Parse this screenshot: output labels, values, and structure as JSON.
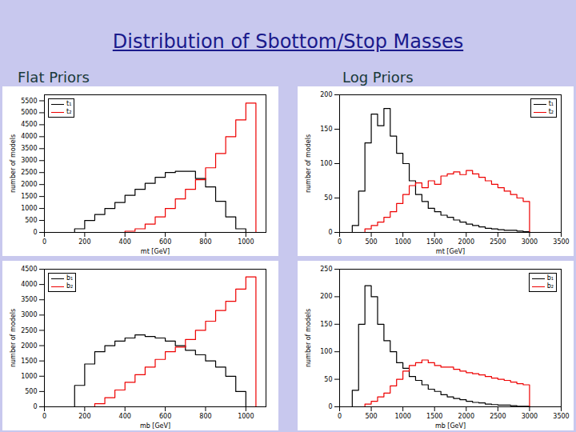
{
  "title": "Distribution of Sbottom/Stop Masses",
  "columns": [
    "Flat Priors",
    "Log Priors"
  ],
  "chart_data": [
    {
      "type": "histogram",
      "x_label": "mt [GeV]",
      "y_label": "number of models",
      "xlim": [
        0,
        1100
      ],
      "xticks": [
        0,
        200,
        400,
        600,
        800,
        1000
      ],
      "ylim": [
        0,
        5750
      ],
      "yticks": [
        0,
        500,
        1000,
        1500,
        2000,
        2500,
        3000,
        3500,
        4000,
        4500,
        5000,
        5500
      ],
      "legend": "top-left",
      "series": [
        {
          "name": "t₁",
          "color": "#000000",
          "bins": [
            150,
            200,
            250,
            300,
            350,
            400,
            450,
            500,
            550,
            600,
            650,
            700,
            750,
            800,
            850,
            900,
            950,
            1000
          ],
          "values": [
            150,
            500,
            750,
            1000,
            1250,
            1550,
            1800,
            2050,
            2300,
            2500,
            2550,
            2550,
            2250,
            1900,
            1300,
            650,
            150
          ]
        },
        {
          "name": "t₂",
          "color": "#ee0000",
          "bins": [
            400,
            450,
            500,
            550,
            600,
            650,
            700,
            750,
            800,
            850,
            900,
            950,
            1000,
            1050
          ],
          "values": [
            50,
            150,
            350,
            650,
            1000,
            1400,
            1800,
            2200,
            2700,
            3300,
            4000,
            4700,
            5400
          ]
        }
      ]
    },
    {
      "type": "histogram",
      "x_label": "mt [GeV]",
      "y_label": "number of models",
      "xlim": [
        0,
        3500
      ],
      "xticks": [
        0,
        500,
        1000,
        1500,
        2000,
        2500,
        3000,
        3500
      ],
      "ylim": [
        0,
        200
      ],
      "yticks": [
        0,
        50,
        100,
        150,
        200
      ],
      "legend": "top-right",
      "series": [
        {
          "name": "t₁",
          "color": "#000000",
          "bins": [
            200,
            300,
            400,
            500,
            600,
            700,
            800,
            900,
            1000,
            1100,
            1200,
            1300,
            1400,
            1500,
            1600,
            1700,
            1800,
            1900,
            2000,
            2100,
            2200,
            2300,
            2400,
            2500,
            2600,
            2700,
            2800,
            2900,
            3000
          ],
          "values": [
            10,
            60,
            130,
            172,
            155,
            180,
            140,
            115,
            100,
            75,
            55,
            45,
            35,
            30,
            25,
            22,
            18,
            15,
            12,
            10,
            8,
            6,
            5,
            4,
            3,
            3,
            2,
            1
          ]
        },
        {
          "name": "t₂",
          "color": "#ee0000",
          "bins": [
            400,
            500,
            600,
            700,
            800,
            900,
            1000,
            1100,
            1200,
            1300,
            1400,
            1500,
            1600,
            1700,
            1800,
            1900,
            2000,
            2100,
            2200,
            2300,
            2400,
            2500,
            2600,
            2700,
            2800,
            2900,
            3000
          ],
          "values": [
            5,
            10,
            15,
            22,
            30,
            42,
            55,
            68,
            72,
            65,
            75,
            70,
            82,
            85,
            88,
            84,
            90,
            85,
            80,
            75,
            70,
            65,
            60,
            55,
            50,
            45
          ]
        }
      ]
    },
    {
      "type": "histogram",
      "x_label": "mb [GeV]",
      "y_label": "number of models",
      "xlim": [
        0,
        1100
      ],
      "xticks": [
        0,
        200,
        400,
        600,
        800,
        1000
      ],
      "ylim": [
        0,
        4500
      ],
      "yticks": [
        0,
        500,
        1000,
        1500,
        2000,
        2500,
        3000,
        3500,
        4000,
        4500
      ],
      "legend": "top-left",
      "series": [
        {
          "name": "b₁",
          "color": "#000000",
          "bins": [
            150,
            200,
            250,
            300,
            350,
            400,
            450,
            500,
            550,
            600,
            650,
            700,
            750,
            800,
            850,
            900,
            950,
            1000
          ],
          "values": [
            700,
            1400,
            1800,
            2000,
            2150,
            2250,
            2350,
            2300,
            2250,
            2150,
            2000,
            1850,
            1700,
            1500,
            1300,
            1000,
            500
          ]
        },
        {
          "name": "b₂",
          "color": "#ee0000",
          "bins": [
            250,
            300,
            350,
            400,
            450,
            500,
            550,
            600,
            650,
            700,
            750,
            800,
            850,
            900,
            950,
            1000,
            1050
          ],
          "values": [
            100,
            300,
            550,
            800,
            1050,
            1300,
            1550,
            1800,
            1950,
            2200,
            2500,
            2800,
            3150,
            3450,
            3850,
            4250
          ]
        }
      ]
    },
    {
      "type": "histogram",
      "x_label": "mb [GeV]",
      "y_label": "number of models",
      "xlim": [
        0,
        3500
      ],
      "xticks": [
        0,
        500,
        1000,
        1500,
        2000,
        2500,
        3000,
        3500
      ],
      "ylim": [
        0,
        250
      ],
      "yticks": [
        0,
        50,
        100,
        150,
        200,
        250
      ],
      "legend": "top-right",
      "series": [
        {
          "name": "b₁",
          "color": "#000000",
          "bins": [
            200,
            300,
            400,
            500,
            600,
            700,
            800,
            900,
            1000,
            1100,
            1200,
            1300,
            1400,
            1500,
            1600,
            1700,
            1800,
            1900,
            2000,
            2100,
            2200,
            2300,
            2400,
            2500,
            2600,
            2700,
            2800,
            2900,
            3000
          ],
          "values": [
            30,
            150,
            220,
            200,
            150,
            120,
            100,
            80,
            70,
            55,
            48,
            40,
            32,
            28,
            22,
            18,
            15,
            13,
            10,
            8,
            7,
            5,
            4,
            3,
            3,
            2,
            1,
            1
          ]
        },
        {
          "name": "b₂",
          "color": "#ee0000",
          "bins": [
            400,
            500,
            600,
            700,
            800,
            900,
            1000,
            1100,
            1200,
            1300,
            1400,
            1500,
            1600,
            1700,
            1800,
            1900,
            2000,
            2100,
            2200,
            2300,
            2400,
            2500,
            2600,
            2700,
            2800,
            2900,
            3000
          ],
          "values": [
            5,
            10,
            18,
            25,
            38,
            50,
            65,
            75,
            80,
            85,
            80,
            75,
            72,
            72,
            68,
            65,
            62,
            60,
            58,
            55,
            52,
            50,
            48,
            45,
            42,
            40
          ]
        }
      ]
    }
  ]
}
